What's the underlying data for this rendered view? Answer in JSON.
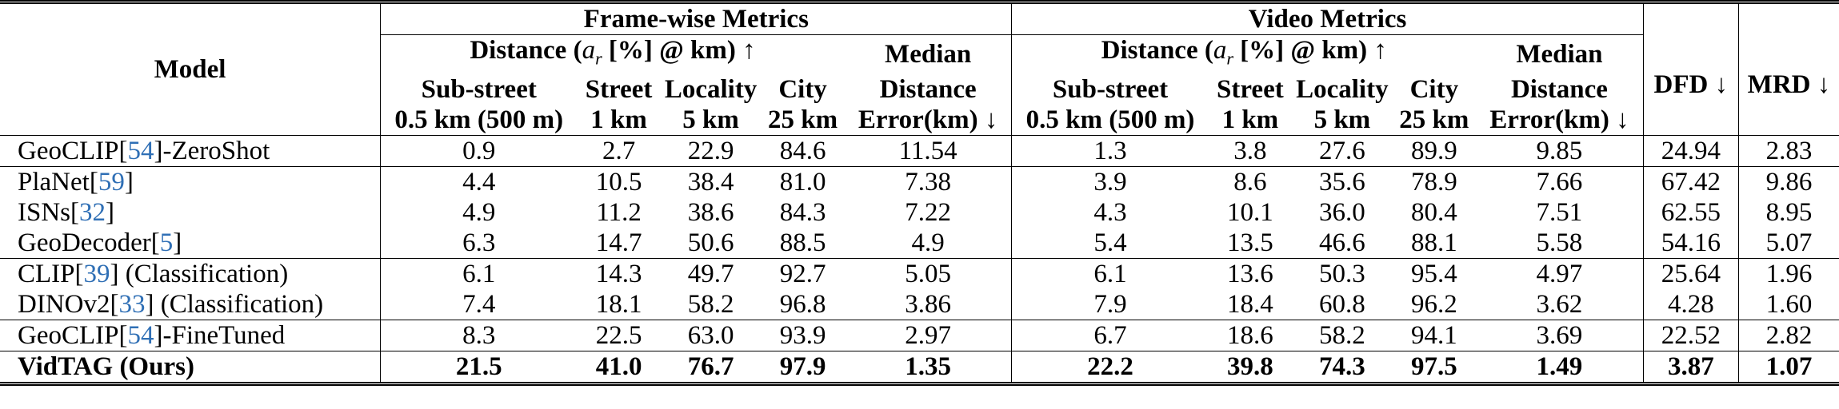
{
  "table": {
    "model_header": "Model",
    "group_frame": "Frame-wise Metrics",
    "group_video": "Video Metrics",
    "distance_prefix": "Distance (",
    "distance_symbol": "a",
    "distance_sub": "r",
    "distance_suffix": " [%] @ km) ↑",
    "median_line1": "Median",
    "median_line2": "Distance",
    "median_line3": "Error(km) ↓",
    "sub_levels": [
      {
        "name": "Sub-street",
        "radius": "0.5 km (500 m)"
      },
      {
        "name": "Street",
        "radius": "1 km"
      },
      {
        "name": "Locality",
        "radius": "5 km"
      },
      {
        "name": "City",
        "radius": "25 km"
      }
    ],
    "dfd_header": "DFD ↓",
    "mrd_header": "MRD ↓",
    "rows": [
      {
        "pre": "GeoCLIP[",
        "cite": "54",
        "post": "]-ZeroShot",
        "frame": [
          "0.9",
          "2.7",
          "22.9",
          "84.6",
          "11.54"
        ],
        "video": [
          "1.3",
          "3.8",
          "27.6",
          "89.9",
          "9.85"
        ],
        "dfd": "24.94",
        "mrd": "2.83"
      },
      {
        "pre": "PlaNet[",
        "cite": "59",
        "post": "]",
        "frame": [
          "4.4",
          "10.5",
          "38.4",
          "81.0",
          "7.38"
        ],
        "video": [
          "3.9",
          "8.6",
          "35.6",
          "78.9",
          "7.66"
        ],
        "dfd": "67.42",
        "mrd": "9.86"
      },
      {
        "pre": "ISNs[",
        "cite": "32",
        "post": "]",
        "frame": [
          "4.9",
          "11.2",
          "38.6",
          "84.3",
          "7.22"
        ],
        "video": [
          "4.3",
          "10.1",
          "36.0",
          "80.4",
          "7.51"
        ],
        "dfd": "62.55",
        "mrd": "8.95"
      },
      {
        "pre": "GeoDecoder[",
        "cite": "5",
        "post": "]",
        "frame": [
          "6.3",
          "14.7",
          "50.6",
          "88.5",
          "4.9"
        ],
        "video": [
          "5.4",
          "13.5",
          "46.6",
          "88.1",
          "5.58"
        ],
        "dfd": "54.16",
        "mrd": "5.07"
      },
      {
        "pre": "CLIP[",
        "cite": "39",
        "post": "] (Classification)",
        "frame": [
          "6.1",
          "14.3",
          "49.7",
          "92.7",
          "5.05"
        ],
        "video": [
          "6.1",
          "13.6",
          "50.3",
          "95.4",
          "4.97"
        ],
        "dfd": "25.64",
        "mrd": "1.96"
      },
      {
        "pre": "DINOv2[",
        "cite": "33",
        "post": "] (Classification)",
        "frame": [
          "7.4",
          "18.1",
          "58.2",
          "96.8",
          "3.86"
        ],
        "video": [
          "7.9",
          "18.4",
          "60.8",
          "96.2",
          "3.62"
        ],
        "dfd": "4.28",
        "mrd": "1.60"
      },
      {
        "pre": "GeoCLIP[",
        "cite": "54",
        "post": "]-FineTuned",
        "frame": [
          "8.3",
          "22.5",
          "63.0",
          "93.9",
          "2.97"
        ],
        "video": [
          "6.7",
          "18.6",
          "58.2",
          "94.1",
          "3.69"
        ],
        "dfd": "22.52",
        "mrd": "2.82"
      },
      {
        "pre": "VidTAG (Ours)",
        "cite": "",
        "post": "",
        "frame": [
          "21.5",
          "41.0",
          "76.7",
          "97.9",
          "1.35"
        ],
        "video": [
          "22.2",
          "39.8",
          "74.3",
          "97.5",
          "1.49"
        ],
        "dfd": "3.87",
        "mrd": "1.07"
      }
    ]
  }
}
